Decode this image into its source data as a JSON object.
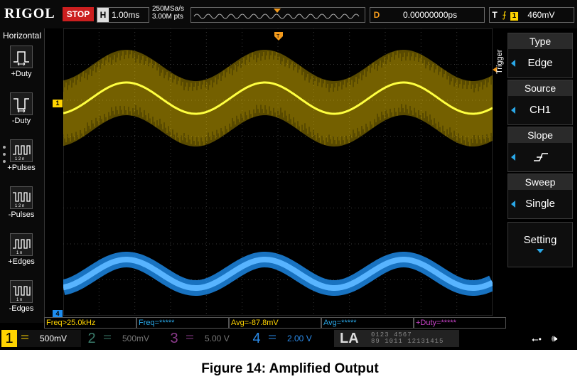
{
  "topbar": {
    "brand": "RIGOL",
    "run_state": "STOP",
    "horizontal_key": "H",
    "timebase": "1.00ms",
    "sample_rate": "250MSa/s",
    "memory_depth": "3.00M pts",
    "delay_key": "D",
    "delay_value": "0.00000000ps",
    "trigger_key": "T",
    "trigger_channel": "1",
    "trigger_level": "460mV"
  },
  "left_panel": {
    "title": "Horizontal",
    "items": [
      {
        "label": "+Duty",
        "icon": "pos-duty-icon"
      },
      {
        "label": "-Duty",
        "icon": "neg-duty-icon"
      },
      {
        "label": "+Pulses",
        "icon": "pos-pulses-icon"
      },
      {
        "label": "-Pulses",
        "icon": "neg-pulses-icon"
      },
      {
        "label": "+Edges",
        "icon": "pos-edges-icon"
      },
      {
        "label": "-Edges",
        "icon": "neg-edges-icon"
      }
    ]
  },
  "markers": {
    "ch1_marker": "1",
    "ch4_marker": "4"
  },
  "right_menu": {
    "section_label": "Trigger",
    "items": [
      {
        "title": "Type",
        "value": "Edge"
      },
      {
        "title": "Source",
        "value": "CH1"
      },
      {
        "title": "Slope",
        "value": ""
      },
      {
        "title": "Sweep",
        "value": "Single"
      }
    ],
    "setting_label": "Setting"
  },
  "measurements": [
    {
      "text": "Freq>25.0kHz",
      "color": "yellow"
    },
    {
      "text": "Freq=*****",
      "color": "blue"
    },
    {
      "text": "Avg=-87.8mV",
      "color": "yellow"
    },
    {
      "text": "Avg=*****",
      "color": "blue"
    },
    {
      "text": "+Duty=*****",
      "color": "purple"
    }
  ],
  "channels": [
    {
      "num": "1",
      "scale": "500mV",
      "color": "#ffd400",
      "active": true
    },
    {
      "num": "2",
      "scale": "500mV",
      "color": "#3a7a6a",
      "active": false
    },
    {
      "num": "3",
      "scale": "5.00 V",
      "color": "#8a3a8a",
      "active": false
    },
    {
      "num": "4",
      "scale": "2.00 V",
      "color": "#2a8ae8",
      "active": true
    }
  ],
  "la": {
    "label": "LA",
    "bits_top": "0123 4567",
    "bits_bottom": "89 1011 12131415"
  },
  "colors": {
    "ch1": "#ffd400",
    "ch4": "#1e8ef0",
    "accent": "#2aa8e8",
    "stop": "#cc1f1f",
    "delay": "#f39a1c"
  },
  "caption": "Figure 14: Amplified Output"
}
